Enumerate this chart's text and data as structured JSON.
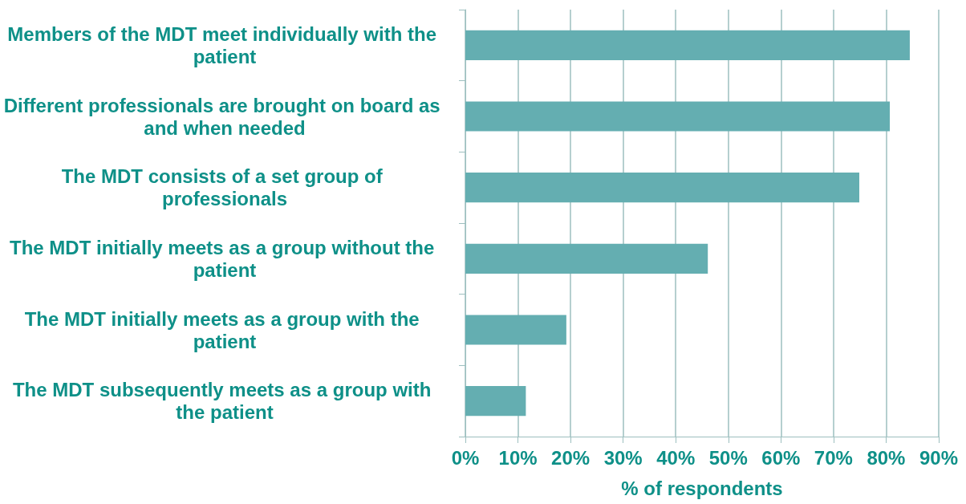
{
  "chart_data": {
    "type": "bar",
    "orientation": "horizontal",
    "xlabel": "% of respondents",
    "categories": [
      "Members of the MDT meet individually with the patient",
      "Different professionals are brought on board as and when needed",
      "The MDT consists of a set group of professionals",
      "The MDT initially meets as a group without the patient",
      "The MDT initially meets as a group with the patient",
      "The MDT subsequently meets as a group with the patient"
    ],
    "values": [
      84.5,
      80.7,
      74.9,
      46.1,
      19.2,
      11.5
    ],
    "color": "#64aeb1",
    "xlim": [
      0,
      90
    ],
    "xticks": [
      {
        "value": 0,
        "label": "0%"
      },
      {
        "value": 10,
        "label": "10%"
      },
      {
        "value": 20,
        "label": "20%"
      },
      {
        "value": 30,
        "label": "30%"
      },
      {
        "value": 40,
        "label": "40%"
      },
      {
        "value": 50,
        "label": "50%"
      },
      {
        "value": 60,
        "label": "60%"
      },
      {
        "value": 70,
        "label": "70%"
      },
      {
        "value": 80,
        "label": "80%"
      },
      {
        "value": 90,
        "label": "90%"
      }
    ],
    "grid": "x"
  }
}
